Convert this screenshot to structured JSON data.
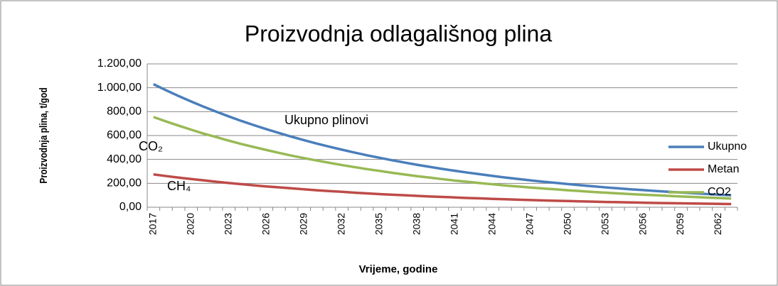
{
  "chart_data": {
    "type": "line",
    "title": "Proizvodnja odlagališnog plina",
    "xlabel": "Vrijeme, godine",
    "ylabel": "Proizvodnja plina, t/god",
    "categories": [
      "2017",
      null,
      null,
      "2020",
      null,
      null,
      "2023",
      null,
      null,
      "2026",
      null,
      null,
      "2029",
      null,
      null,
      "2032",
      null,
      null,
      "2035",
      null,
      null,
      "2038",
      null,
      null,
      "2041",
      null,
      null,
      "2044",
      null,
      null,
      "2047",
      null,
      null,
      "2050",
      null,
      null,
      "2053",
      null,
      null,
      "2056",
      null,
      null,
      "2059",
      null,
      null,
      "2062",
      null
    ],
    "series": [
      {
        "name": "Ukupno",
        "color": "#4a7ebb",
        "values": [
          1030,
          979,
          931,
          885,
          841,
          800,
          760,
          722,
          687,
          653,
          621,
          590,
          561,
          533,
          507,
          482,
          458,
          435,
          414,
          393,
          374,
          355,
          338,
          321,
          305,
          290,
          276,
          262,
          249,
          237,
          225,
          214,
          204,
          194,
          184,
          175,
          166,
          158,
          150,
          143,
          136,
          129,
          123,
          117,
          111,
          105,
          100
        ]
      },
      {
        "name": "Metan",
        "color": "#be4b48",
        "values": [
          275,
          261,
          248,
          236,
          225,
          213,
          203,
          193,
          183,
          174,
          166,
          158,
          150,
          142,
          135,
          129,
          122,
          116,
          110,
          105,
          100,
          95,
          90,
          86,
          82,
          77,
          74,
          70,
          67,
          63,
          60,
          57,
          54,
          52,
          49,
          47,
          44,
          42,
          40,
          38,
          36,
          34,
          33,
          31,
          30,
          28,
          27
        ]
      },
      {
        "name": "CO2",
        "color": "#98b954",
        "values": [
          755,
          718,
          683,
          649,
          616,
          587,
          557,
          529,
          504,
          479,
          455,
          432,
          411,
          391,
          372,
          353,
          336,
          319,
          304,
          288,
          274,
          260,
          248,
          235,
          223,
          213,
          202,
          192,
          182,
          174,
          165,
          157,
          150,
          142,
          135,
          128,
          122,
          116,
          110,
          105,
          100,
          95,
          90,
          86,
          81,
          77,
          73
        ]
      }
    ],
    "ylim": [
      0,
      1200
    ],
    "yticks": [
      {
        "value": 0,
        "label": "0,00"
      },
      {
        "value": 200,
        "label": "200,00"
      },
      {
        "value": 400,
        "label": "400,00"
      },
      {
        "value": 600,
        "label": "600,00"
      },
      {
        "value": 800,
        "label": "800,00"
      },
      {
        "value": 1000,
        "label": "1.000,00"
      },
      {
        "value": 1200,
        "label": "1.200,00"
      }
    ],
    "grid": true,
    "legend": "right",
    "annotations": [
      {
        "text": "Ukupno plinovi",
        "color": "#4a7ebb"
      },
      {
        "text": "CO₂",
        "color": "#98b954"
      },
      {
        "text": "CH₄",
        "color": "#be4b48"
      }
    ]
  }
}
